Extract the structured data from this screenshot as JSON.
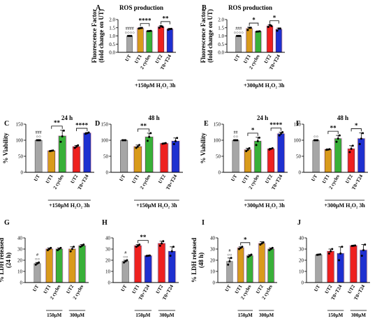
{
  "colors": {
    "UT": "#a6a6a6",
    "UT1": "#d99a1c",
    "UT1_2cycles": "#39b039",
    "UT2": "#ee2020",
    "UT2_T0T24": "#1f2fd0",
    "halo": "#f6b8e4"
  },
  "chart_data": [
    {
      "id": "A",
      "type": "bar",
      "title": "ROS production",
      "ylabel": "Fluorescence Factor\n(fold change on UT)",
      "ylim": [
        0,
        2
      ],
      "yticks": [
        "0.0",
        "0.5",
        "1.0",
        "1.5",
        "2.0"
      ],
      "categories": [
        "UT",
        "UT1",
        "2 cycles",
        "UT2",
        "T0+T24"
      ],
      "values": [
        1.0,
        1.47,
        1.3,
        1.55,
        1.41
      ],
      "errors": [
        0.01,
        0.03,
        0.02,
        0.07,
        0.05
      ],
      "colorKeys": [
        "UT",
        "UT1",
        "UT1_2cycles",
        "UT2",
        "UT2_T0T24"
      ],
      "points": [
        [
          1.0,
          1.0,
          1.0
        ],
        [
          1.45,
          1.48,
          1.49
        ],
        [
          1.29,
          1.3,
          1.31
        ],
        [
          1.5,
          1.6,
          1.55
        ],
        [
          1.38,
          1.42,
          1.43
        ]
      ],
      "ut_marks": "####\n○○○○",
      "brackets": [
        {
          "a": 1,
          "b": 2,
          "label": "****"
        },
        {
          "a": 3,
          "b": 4,
          "label": "**"
        }
      ],
      "group_label": "+150μM H₂O₂ 3h"
    },
    {
      "id": "B",
      "type": "bar",
      "title": "ROS production",
      "ylabel": "Fluorescence Factor\n(fold change on UT)",
      "ylim": [
        0,
        2
      ],
      "yticks": [
        "0.0",
        "0.5",
        "1.0",
        "1.5",
        "2.0"
      ],
      "categories": [
        "UT",
        "UT1",
        "2 cycles",
        "UT2",
        "T0+T24"
      ],
      "values": [
        1.0,
        1.45,
        1.27,
        1.6,
        1.4
      ],
      "errors": [
        0.01,
        0.08,
        0.02,
        0.07,
        0.08
      ],
      "colorKeys": [
        "UT",
        "UT1",
        "UT1_2cycles",
        "UT2",
        "UT2_T0T24"
      ],
      "points": [
        [
          1.0,
          1.0,
          1.0
        ],
        [
          1.36,
          1.5,
          1.5
        ],
        [
          1.26,
          1.27,
          1.28
        ],
        [
          1.55,
          1.67,
          1.6
        ],
        [
          1.32,
          1.45,
          1.45
        ]
      ],
      "ut_marks": "###\n○○○○",
      "brackets": [
        {
          "a": 1,
          "b": 2,
          "label": "*"
        },
        {
          "a": 3,
          "b": 4,
          "label": "*"
        }
      ],
      "group_label": "+300μM H₂O₂ 3h"
    },
    {
      "id": "C",
      "type": "bar",
      "title": "24 h",
      "ylabel": "% Viability",
      "ylim": [
        0,
        150
      ],
      "yticks": [
        "0",
        "50",
        "100",
        "150"
      ],
      "categories": [
        "UT",
        "UT1",
        "2 cycles",
        "UT2",
        "T0+T24"
      ],
      "values": [
        100,
        67,
        113,
        80,
        122
      ],
      "errors": [
        1,
        1,
        18,
        4,
        2
      ],
      "colorKeys": [
        "UT",
        "UT1",
        "UT1_2cycles",
        "UT2",
        "UT2_T0T24"
      ],
      "points": [
        [
          100,
          100,
          100
        ],
        [
          66,
          67,
          68
        ],
        [
          95,
          112,
          130
        ],
        [
          76,
          80,
          84
        ],
        [
          120,
          122,
          124
        ]
      ],
      "ut_marks": "###\n○○",
      "brackets": [
        {
          "a": 1,
          "b": 2,
          "label": "**"
        },
        {
          "a": 3,
          "b": 4,
          "label": "****"
        }
      ],
      "group_label": "+150μM H₂O₂ 3h"
    },
    {
      "id": "D",
      "type": "bar",
      "title": "48 h",
      "ylabel": "",
      "ylim": [
        0,
        150
      ],
      "yticks": [
        "0",
        "50",
        "100",
        "150"
      ],
      "categories": [
        "UT",
        "UT1",
        "2 cycles",
        "UT2",
        "T0+T24"
      ],
      "values": [
        100,
        80,
        110,
        90,
        97
      ],
      "errors": [
        1,
        5,
        12,
        1,
        10
      ],
      "colorKeys": [
        "UT",
        "UT1",
        "UT1_2cycles",
        "UT2",
        "UT2_T0T24"
      ],
      "points": [
        [
          100,
          100,
          100
        ],
        [
          76,
          80,
          85
        ],
        [
          98,
          110,
          122
        ],
        [
          89,
          90,
          91
        ],
        [
          88,
          97,
          107
        ]
      ],
      "ut_marks": "",
      "brackets": [
        {
          "a": 1,
          "b": 2,
          "label": "**"
        }
      ],
      "group_label": "+150μM H₂O₂ 3h"
    },
    {
      "id": "E",
      "type": "bar",
      "title": "24 h",
      "ylabel": "% Viability",
      "ylim": [
        0,
        150
      ],
      "yticks": [
        "0",
        "50",
        "100",
        "150"
      ],
      "categories": [
        "UT",
        "UT1",
        "2 cycles",
        "UT2",
        "T0+T24"
      ],
      "values": [
        100,
        70,
        97,
        73,
        120
      ],
      "errors": [
        1,
        5,
        12,
        2,
        5
      ],
      "colorKeys": [
        "UT",
        "UT1",
        "UT1_2cycles",
        "UT2",
        "UT2_T0T24"
      ],
      "points": [
        [
          100,
          100,
          100
        ],
        [
          66,
          70,
          75
        ],
        [
          85,
          97,
          108
        ],
        [
          71,
          73,
          75
        ],
        [
          115,
          120,
          125
        ]
      ],
      "ut_marks": "##\n○○",
      "brackets": [
        {
          "a": 1,
          "b": 2,
          "label": "*"
        },
        {
          "a": 3,
          "b": 4,
          "label": "****"
        }
      ],
      "group_label": "+300μM H₂O₂ 3h"
    },
    {
      "id": "F",
      "type": "bar",
      "title": "48 h",
      "ylabel": "",
      "ylim": [
        0,
        150
      ],
      "yticks": [
        "0",
        "50",
        "100",
        "150"
      ],
      "categories": [
        "UT",
        "UT1",
        "2 cycles",
        "UT2",
        "T0+T24"
      ],
      "values": [
        100,
        71,
        105,
        73,
        105
      ],
      "errors": [
        1,
        2,
        10,
        10,
        18
      ],
      "colorKeys": [
        "UT",
        "UT1",
        "UT1_2cycles",
        "UT2",
        "UT2_T0T24"
      ],
      "points": [
        [
          100,
          100,
          100
        ],
        [
          70,
          71,
          72
        ],
        [
          95,
          105,
          115
        ],
        [
          63,
          73,
          83
        ],
        [
          88,
          105,
          122
        ]
      ],
      "ut_marks": "○○",
      "brackets": [
        {
          "a": 1,
          "b": 2,
          "label": "**"
        },
        {
          "a": 3,
          "b": 4,
          "label": "*"
        }
      ],
      "group_label": "+300μM H₂O₂ 3h"
    },
    {
      "id": "G",
      "type": "bar",
      "title": "",
      "ylabel": "% LDH released\n(24 h)",
      "ylim": [
        0,
        40
      ],
      "yticks": [
        "0",
        "10",
        "20",
        "30",
        "40"
      ],
      "categories": [
        "UT",
        "UT1",
        "2 cycles",
        "UT2",
        "2 cycles"
      ],
      "values": [
        17,
        30,
        30,
        30,
        33
      ],
      "errors": [
        1,
        1,
        1,
        2,
        1
      ],
      "colorKeys": [
        "UT",
        "UT1",
        "UT1_2cycles",
        "UT1",
        "UT1_2cycles"
      ],
      "points": [
        [
          16,
          17,
          18
        ],
        [
          29,
          30,
          31
        ],
        [
          29,
          30,
          31
        ],
        [
          28,
          30,
          32
        ],
        [
          32,
          33,
          34
        ]
      ],
      "ut_marks": "#\n○○",
      "brackets": [],
      "dose_labels": [
        "150μM",
        "300μM"
      ],
      "group_label": ""
    },
    {
      "id": "H",
      "type": "bar",
      "title": "",
      "ylabel": "",
      "ylim": [
        0,
        40
      ],
      "yticks": [
        "0",
        "10",
        "20",
        "30",
        "40"
      ],
      "categories": [
        "UT",
        "UT1",
        "T0+T24",
        "UT2",
        "T0+T24"
      ],
      "values": [
        19,
        33,
        24,
        35,
        28
      ],
      "errors": [
        1,
        1,
        0.5,
        2,
        4
      ],
      "colorKeys": [
        "UT",
        "UT2",
        "UT2_T0T24",
        "UT2",
        "UT2_T0T24"
      ],
      "points": [
        [
          18,
          19,
          20
        ],
        [
          32,
          33,
          34
        ],
        [
          23.8,
          24,
          24.2
        ],
        [
          33,
          35,
          37
        ],
        [
          24,
          28,
          32
        ]
      ],
      "ut_marks": "#\n○○",
      "brackets": [
        {
          "a": 1,
          "b": 2,
          "label": "**"
        }
      ],
      "dose_labels": [
        "150μM",
        "300μM"
      ],
      "group_label": ""
    },
    {
      "id": "I",
      "type": "bar",
      "title": "",
      "ylabel": "% LDH released\n(48 h)",
      "ylim": [
        0,
        40
      ],
      "yticks": [
        "0",
        "10",
        "20",
        "30",
        "40"
      ],
      "categories": [
        "UT",
        "UT1",
        "2 cycles",
        "UT2",
        "2 cycles"
      ],
      "values": [
        19,
        31,
        24,
        35,
        30
      ],
      "errors": [
        3,
        1,
        1,
        1.5,
        1
      ],
      "colorKeys": [
        "UT",
        "UT1",
        "UT1_2cycles",
        "UT1",
        "UT1_2cycles"
      ],
      "points": [
        [
          16,
          19,
          22
        ],
        [
          30,
          31,
          32
        ],
        [
          23,
          24,
          25
        ],
        [
          34,
          35,
          36
        ],
        [
          29,
          30,
          31
        ]
      ],
      "ut_marks": "#\n○○",
      "brackets": [
        {
          "a": 1,
          "b": 2,
          "label": "*"
        }
      ],
      "dose_labels": [
        "150μM",
        "300μM"
      ],
      "group_label": ""
    },
    {
      "id": "J",
      "type": "bar",
      "title": "",
      "ylabel": "",
      "ylim": [
        0,
        40
      ],
      "yticks": [
        "0",
        "10",
        "20",
        "30",
        "40"
      ],
      "categories": [
        "UT",
        "UT2",
        "T0+T24",
        "UT2",
        "T0+T24"
      ],
      "values": [
        25,
        28,
        26,
        33,
        29
      ],
      "errors": [
        0.5,
        2,
        6,
        0.3,
        5
      ],
      "colorKeys": [
        "UT",
        "UT2",
        "UT2_T0T24",
        "UT2",
        "UT2_T0T24"
      ],
      "points": [
        [
          24.8,
          25,
          25.2
        ],
        [
          26,
          28,
          30
        ],
        [
          20,
          26,
          32
        ],
        [
          32.8,
          33,
          33.2
        ],
        [
          24,
          29,
          34
        ]
      ],
      "ut_marks": "",
      "brackets": [],
      "dose_labels": [
        "150μM",
        "300μM"
      ],
      "group_label": ""
    }
  ]
}
